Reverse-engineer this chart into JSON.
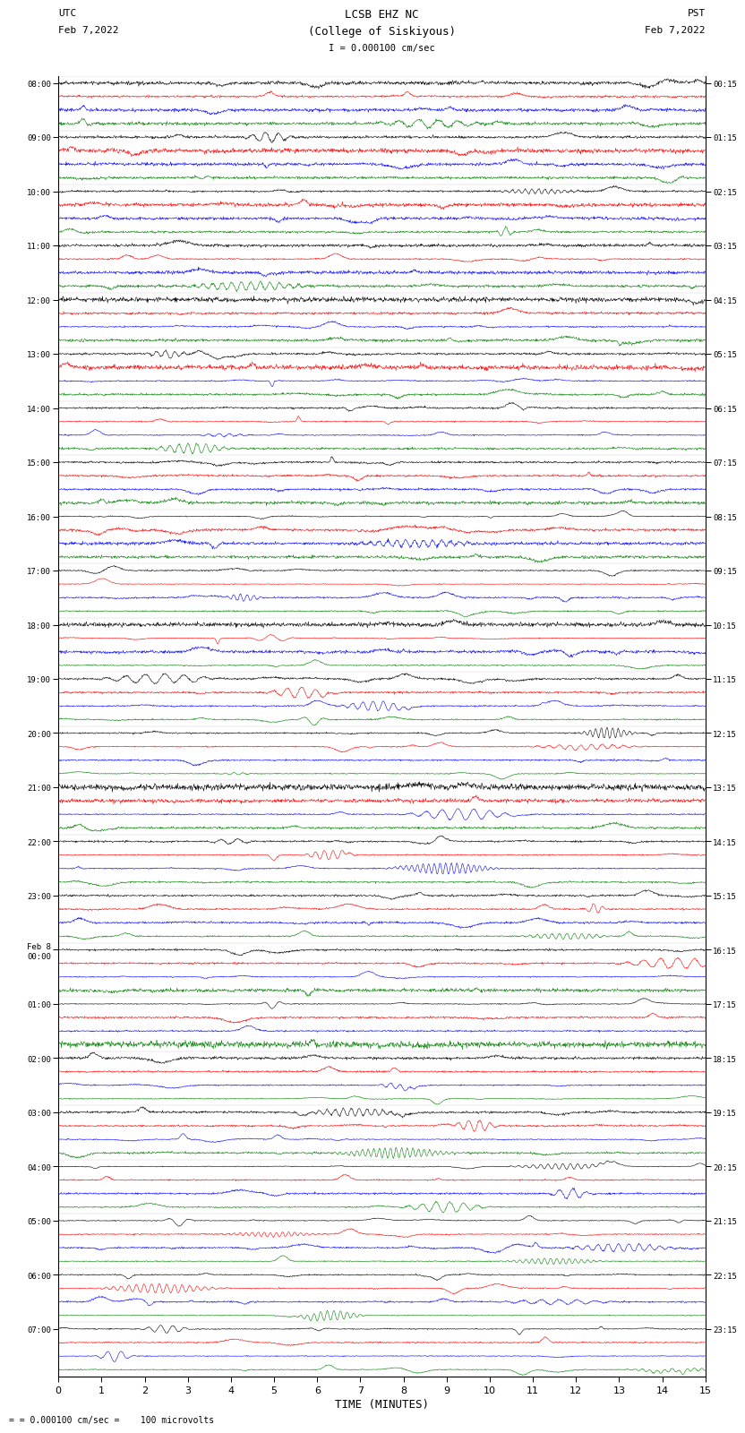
{
  "title_line1": "LCSB EHZ NC",
  "title_line2": "(College of Siskiyous)",
  "scale_label": "I = 0.000100 cm/sec",
  "bottom_label": "= 0.000100 cm/sec =    100 microvolts",
  "left_header": "UTC",
  "left_date": "Feb 7,2022",
  "right_header": "PST",
  "right_date": "Feb 7,2022",
  "xlabel": "TIME (MINUTES)",
  "xlim": [
    0,
    15
  ],
  "xticks": [
    0,
    1,
    2,
    3,
    4,
    5,
    6,
    7,
    8,
    9,
    10,
    11,
    12,
    13,
    14,
    15
  ],
  "fig_width": 8.5,
  "fig_height": 16.13,
  "bg_color": "#ffffff",
  "trace_colors": [
    "black",
    "red",
    "blue",
    "green"
  ],
  "left_times_hourly": [
    "08:00",
    "09:00",
    "10:00",
    "11:00",
    "12:00",
    "13:00",
    "14:00",
    "15:00",
    "16:00",
    "17:00",
    "18:00",
    "19:00",
    "20:00",
    "21:00",
    "22:00",
    "23:00",
    "Feb 8\n00:00",
    "01:00",
    "02:00",
    "03:00",
    "04:00",
    "05:00",
    "06:00",
    "07:00"
  ],
  "right_times_hourly": [
    "00:15",
    "01:15",
    "02:15",
    "03:15",
    "04:15",
    "05:15",
    "06:15",
    "07:15",
    "08:15",
    "09:15",
    "10:15",
    "11:15",
    "12:15",
    "13:15",
    "14:15",
    "15:15",
    "16:15",
    "17:15",
    "18:15",
    "19:15",
    "20:15",
    "21:15",
    "22:15",
    "23:15"
  ],
  "n_hours": 24,
  "traces_per_hour": 4,
  "seed": 42
}
